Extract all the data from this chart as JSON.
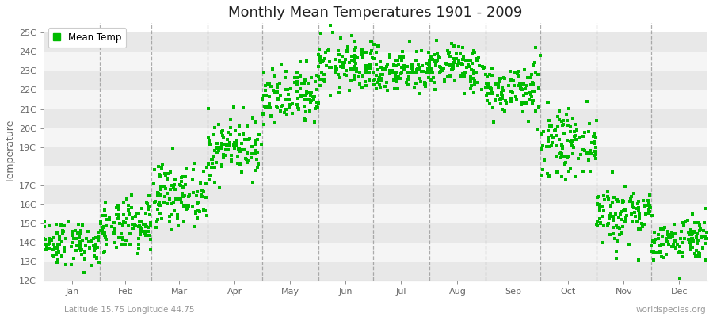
{
  "title": "Monthly Mean Temperatures 1901 - 2009",
  "ylabel": "Temperature",
  "subtitle_left": "Latitude 15.75 Longitude 44.75",
  "subtitle_right": "worldspecies.org",
  "legend_label": "Mean Temp",
  "dot_color": "#00bb00",
  "background_color": "#ffffff",
  "plot_bg_color": "#ffffff",
  "band_color_even": "#e8e8e8",
  "band_color_odd": "#f5f5f5",
  "ylim": [
    12,
    25.5
  ],
  "yticks": [
    12,
    13,
    14,
    15,
    16,
    17,
    19,
    20,
    21,
    22,
    23,
    24,
    25
  ],
  "ytick_labels": [
    "12C",
    "13C",
    "14C",
    "15C",
    "16C",
    "17C",
    "19C",
    "20C",
    "21C",
    "22C",
    "23C",
    "24C",
    "25C"
  ],
  "months": [
    "Jan",
    "Feb",
    "Mar",
    "Apr",
    "May",
    "Jun",
    "Jul",
    "Aug",
    "Sep",
    "Oct",
    "Nov",
    "Dec"
  ],
  "mean_temps": [
    14.0,
    14.8,
    16.5,
    19.0,
    21.5,
    23.3,
    23.0,
    23.2,
    22.0,
    19.2,
    15.5,
    14.2
  ],
  "std_temps": [
    0.6,
    0.7,
    0.8,
    0.8,
    0.8,
    0.7,
    0.6,
    0.6,
    0.7,
    0.8,
    0.8,
    0.6
  ],
  "n_years": 109,
  "random_seed": 42,
  "marker_size": 5,
  "title_fontsize": 13,
  "label_fontsize": 9,
  "tick_fontsize": 8,
  "legend_fontsize": 8.5,
  "days_in_month": [
    31,
    28,
    31,
    30,
    31,
    30,
    31,
    31,
    30,
    31,
    30,
    31
  ]
}
